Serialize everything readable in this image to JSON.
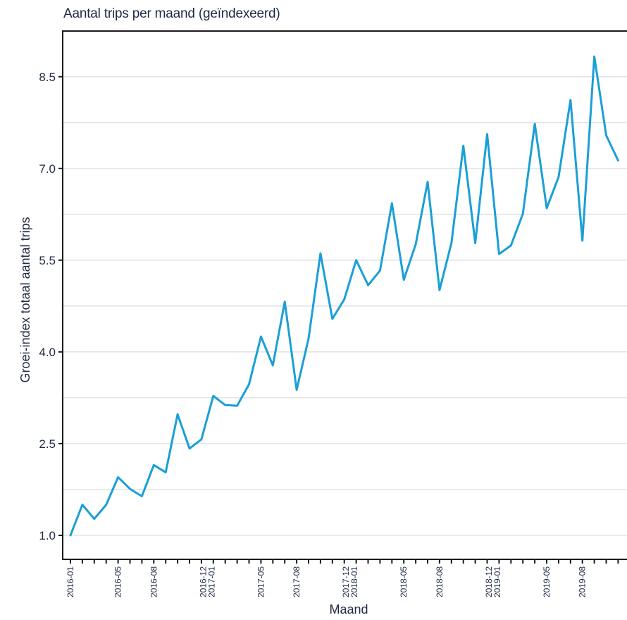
{
  "chart_data": {
    "type": "line",
    "title": "Aantal trips per maand (geïndexeerd)",
    "xlabel": "Maand",
    "ylabel": "Groei-index totaal aantal trips",
    "y_ticks": [
      1.0,
      2.5,
      4.0,
      5.5,
      7.0,
      8.5
    ],
    "y_tick_labels": [
      "1.0",
      "2.5",
      "4.0",
      "5.5",
      "7.0",
      "8.5"
    ],
    "ylim": [
      0.6,
      9.3
    ],
    "grid": true,
    "line_color": "#1a9fd6",
    "categories": [
      "2016-01",
      "2016-02",
      "2016-03",
      "2016-04",
      "2016-05",
      "2016-06",
      "2016-07",
      "2016-08",
      "2016-09",
      "2016-10",
      "2016-11",
      "2016-12",
      "2017-01",
      "2017-02",
      "2017-03",
      "2017-04",
      "2017-05",
      "2017-06",
      "2017-07",
      "2017-08",
      "2017-09",
      "2017-10",
      "2017-11",
      "2017-12",
      "2018-01",
      "2018-02",
      "2018-03",
      "2018-04",
      "2018-05",
      "2018-06",
      "2018-07",
      "2018-08",
      "2018-09",
      "2018-10",
      "2018-11",
      "2018-12",
      "2019-01",
      "2019-02",
      "2019-03",
      "2019-04",
      "2019-05",
      "2019-06",
      "2019-07",
      "2019-08",
      "2019-09",
      "2019-10",
      "2019-11"
    ],
    "x_tick_labels": [
      [
        "2016-01"
      ],
      [
        "2016-05"
      ],
      [
        "2016-08"
      ],
      [
        "2016-12",
        "2017-01"
      ],
      [
        "2017-05"
      ],
      [
        "2017-08"
      ],
      [
        "2017-12",
        "2018-01"
      ],
      [
        "2018-05"
      ],
      [
        "2018-08"
      ],
      [
        "2018-12",
        "2019-01"
      ],
      [
        "2019-05"
      ],
      [
        "2019-08"
      ]
    ],
    "x_tick_label_months": [
      0,
      4,
      7,
      11.5,
      16,
      19,
      23.5,
      28,
      31,
      35.5,
      40,
      43
    ],
    "series": [
      {
        "values": [
          1.0,
          1.5,
          1.27,
          1.5,
          1.95,
          1.76,
          1.64,
          2.15,
          2.03,
          2.98,
          2.42,
          2.57,
          3.28,
          3.13,
          3.12,
          3.47,
          4.25,
          3.78,
          4.82,
          3.38,
          4.22,
          5.61,
          4.54,
          4.86,
          5.5,
          5.09,
          5.33,
          6.43,
          5.18,
          5.76,
          6.78,
          5.01,
          5.78,
          7.37,
          5.78,
          7.56,
          5.6,
          5.74,
          6.26,
          7.73,
          6.35,
          6.86,
          8.12,
          5.82,
          8.83,
          7.54,
          7.13
        ]
      }
    ]
  }
}
